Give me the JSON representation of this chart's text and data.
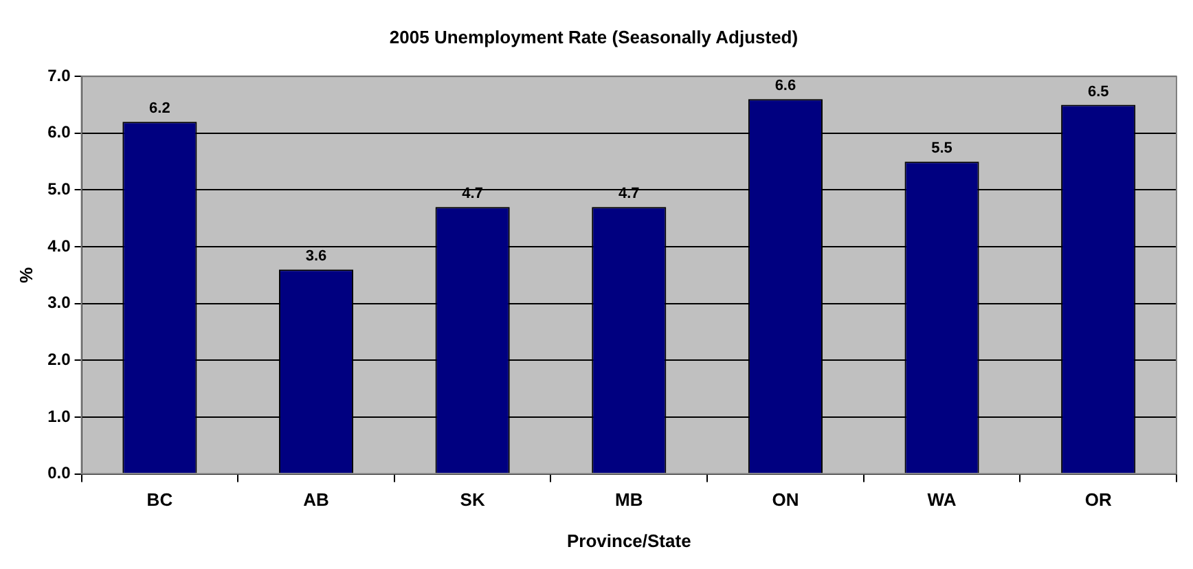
{
  "chart_data": {
    "type": "bar",
    "title": "2005 Unemployment Rate (Seasonally Adjusted)",
    "xlabel": "Province/State",
    "ylabel": "%",
    "categories": [
      "BC",
      "AB",
      "SK",
      "MB",
      "ON",
      "WA",
      "OR"
    ],
    "values": [
      6.2,
      3.6,
      4.7,
      4.7,
      6.6,
      5.5,
      6.5
    ],
    "color": "#000080",
    "ylim": [
      0,
      7
    ],
    "yticks": [
      {
        "value": 0,
        "label": "0.0"
      },
      {
        "value": 1,
        "label": "1.0"
      },
      {
        "value": 2,
        "label": "2.0"
      },
      {
        "value": 3,
        "label": "3.0"
      },
      {
        "value": 4,
        "label": "4.0"
      },
      {
        "value": 5,
        "label": "5.0"
      },
      {
        "value": 6,
        "label": "6.0"
      },
      {
        "value": 7,
        "label": "7.0"
      }
    ],
    "grid": "y",
    "data_labels": true,
    "legend": false
  }
}
